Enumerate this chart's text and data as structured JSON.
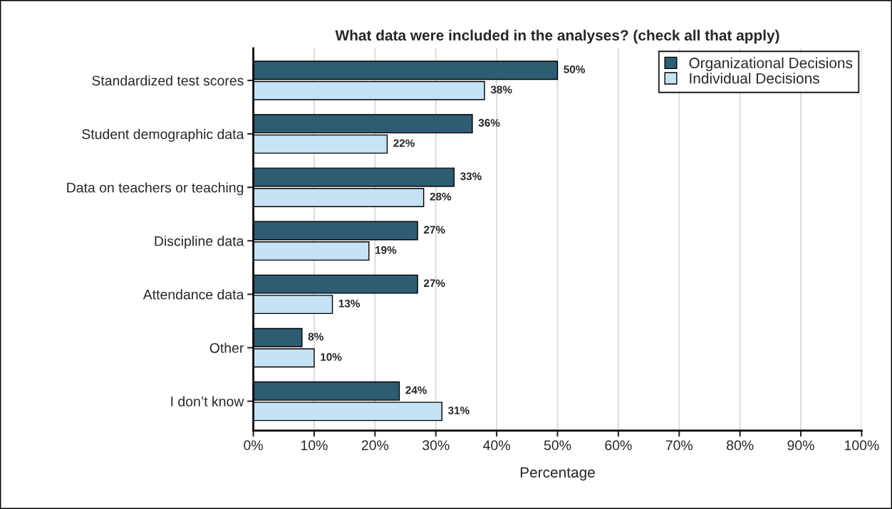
{
  "chart_data": {
    "type": "bar",
    "orientation": "horizontal",
    "title": "What data were included in the analyses? (check all that apply)",
    "xlabel": "Percentage",
    "categories": [
      "Standardized test scores",
      "Student demographic data",
      "Data on teachers or teaching",
      "Discipline data",
      "Attendance data",
      "Other",
      "I don’t know"
    ],
    "series": [
      {
        "name": "Organizational Decisions",
        "color": "#2e5c73",
        "values": [
          50,
          36,
          33,
          27,
          27,
          8,
          24
        ],
        "value_labels": [
          "50%",
          "36%",
          "33%",
          "27%",
          "27%",
          "8%",
          "24%"
        ]
      },
      {
        "name": "Individual Decisions",
        "color": "#c6e2f5",
        "values": [
          38,
          22,
          28,
          19,
          13,
          10,
          31
        ],
        "value_labels": [
          "38%",
          "22%",
          "28%",
          "19%",
          "13%",
          "10%",
          "31%"
        ]
      }
    ],
    "xlim": [
      0,
      100
    ],
    "xticks": [
      {
        "value": 0,
        "label": "0%"
      },
      {
        "value": 10,
        "label": "10%"
      },
      {
        "value": 20,
        "label": "20%"
      },
      {
        "value": 30,
        "label": "30%"
      },
      {
        "value": 40,
        "label": "40%"
      },
      {
        "value": 50,
        "label": "50%"
      },
      {
        "value": 60,
        "label": "60%"
      },
      {
        "value": 70,
        "label": "70%"
      },
      {
        "value": 80,
        "label": "80%"
      },
      {
        "value": 90,
        "label": "90%"
      },
      {
        "value": 100,
        "label": "100%"
      }
    ],
    "grid": "x",
    "legend": "top right"
  }
}
